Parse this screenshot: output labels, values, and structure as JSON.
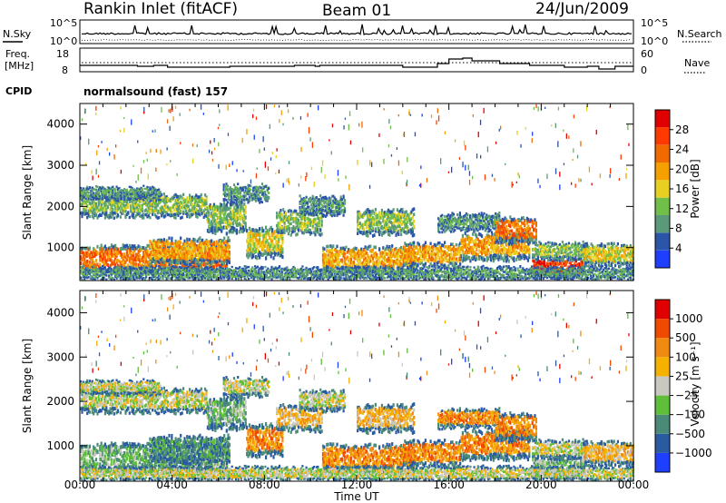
{
  "header": {
    "title": "Rankin Inlet (fitACF)",
    "beam": "Beam 01",
    "date": "24/Jun/2009"
  },
  "strip_labels": {
    "nsky": "N.Sky",
    "nsearch": "N.Search",
    "freq_line1": "Freq.",
    "freq_line2": "[MHz]",
    "nave": "Nave",
    "cpid": "CPID",
    "cpid_value": "normalsound (fast) 157",
    "noise_ticks_left": [
      "10^5",
      "10^0"
    ],
    "noise_ticks_right": [
      "10^5",
      "10^0"
    ],
    "freq_ticks": [
      "18",
      "8"
    ],
    "nave_ticks": [
      "60",
      "0"
    ]
  },
  "colors": {
    "power_scale": [
      "#1f3fff",
      "#2a55a8",
      "#5a9a78",
      "#6fbf4a",
      "#e8d020",
      "#f5a000",
      "#f06a00",
      "#ff3a00",
      "#e00000"
    ],
    "velocity_scale": [
      "#1f3fff",
      "#2a5aa0",
      "#4a8a78",
      "#5fbf3a",
      "#c8c8c0",
      "#f5b000",
      "#f08a10",
      "#f04a00",
      "#e00000"
    ]
  },
  "chart_data": [
    {
      "type": "heatmap",
      "title": "",
      "variable": "Power",
      "xlabel": "Time UT",
      "ylabel": "Slant Range [km]",
      "xlim": [
        "00:00",
        "24:00"
      ],
      "ylim": [
        200,
        4500
      ],
      "x_ticks": [
        "00:00",
        "04:00",
        "08:00",
        "12:00",
        "16:00",
        "20:00",
        "00:00"
      ],
      "y_ticks": [
        "1000",
        "2000",
        "3000",
        "4000"
      ],
      "colorbar_label": "Power [dB]",
      "colorbar_ticks": [
        "28",
        "24",
        "20",
        "16",
        "12",
        "8",
        "4"
      ],
      "colorbar_range": [
        0,
        32
      ]
    },
    {
      "type": "heatmap",
      "title": "",
      "variable": "Velocity",
      "xlabel": "Time UT",
      "ylabel": "Slant Range [km]",
      "xlim": [
        "00:00",
        "24:00"
      ],
      "ylim": [
        200,
        4500
      ],
      "x_ticks": [
        "00:00",
        "04:00",
        "08:00",
        "12:00",
        "16:00",
        "20:00",
        "00:00"
      ],
      "y_ticks": [
        "1000",
        "2000",
        "3000",
        "4000"
      ],
      "colorbar_label": "Velocity [m s⁻¹]",
      "colorbar_ticks": [
        "1000",
        "500",
        "100",
        "25",
        "−25",
        "−100",
        "−500",
        "−1000"
      ]
    }
  ]
}
